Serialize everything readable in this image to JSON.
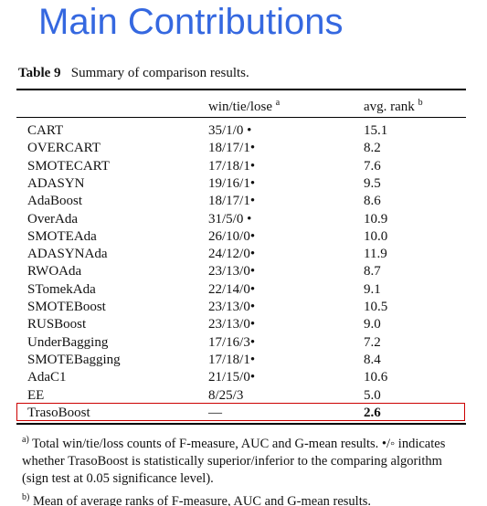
{
  "title": "Main Contributions",
  "table": {
    "caption_label": "Table 9",
    "caption": "Summary of comparison results.",
    "header": [
      {
        "text": "win/tie/lose",
        "note": "a"
      },
      {
        "text": "avg. rank",
        "note": "b"
      }
    ],
    "rows": [
      [
        "CART",
        "35/1/0 •",
        "15.1"
      ],
      [
        "OVERCART",
        "18/17/1•",
        "8.2"
      ],
      [
        "SMOTECART",
        "17/18/1•",
        "7.6"
      ],
      [
        "ADASYN",
        "19/16/1•",
        "9.5"
      ],
      [
        "AdaBoost",
        "18/17/1•",
        "8.6"
      ],
      [
        "OverAda",
        "31/5/0 •",
        "10.9"
      ],
      [
        "SMOTEAda",
        "26/10/0•",
        "10.0"
      ],
      [
        "ADASYNAda",
        "24/12/0•",
        "11.9"
      ],
      [
        "RWOAda",
        "23/13/0•",
        "8.7"
      ],
      [
        "STomekAda",
        "22/14/0•",
        "9.1"
      ],
      [
        "SMOTEBoost",
        "23/13/0•",
        "10.5"
      ],
      [
        "RUSBoost",
        "23/13/0•",
        "9.0"
      ],
      [
        "UnderBagging",
        "17/16/3•",
        "7.2"
      ],
      [
        "SMOTEBagging",
        "17/18/1•",
        "8.4"
      ],
      [
        "AdaC1",
        "21/15/0•",
        "10.6"
      ],
      [
        "EE",
        "8/25/3",
        "5.0"
      ],
      [
        "TrasoBoost",
        "—",
        "2.6"
      ]
    ],
    "footnotes": [
      {
        "mark": "a)",
        "text": "Total win/tie/loss counts of F-measure, AUC and G-mean results. •/◦ indicates whether TrasoBoost is statistically superior/inferior to the comparing algorithm (sign test at 0.05 significance level)."
      },
      {
        "mark": "b)",
        "text": "Mean of average ranks of F-measure, AUC and G-mean results."
      }
    ]
  }
}
